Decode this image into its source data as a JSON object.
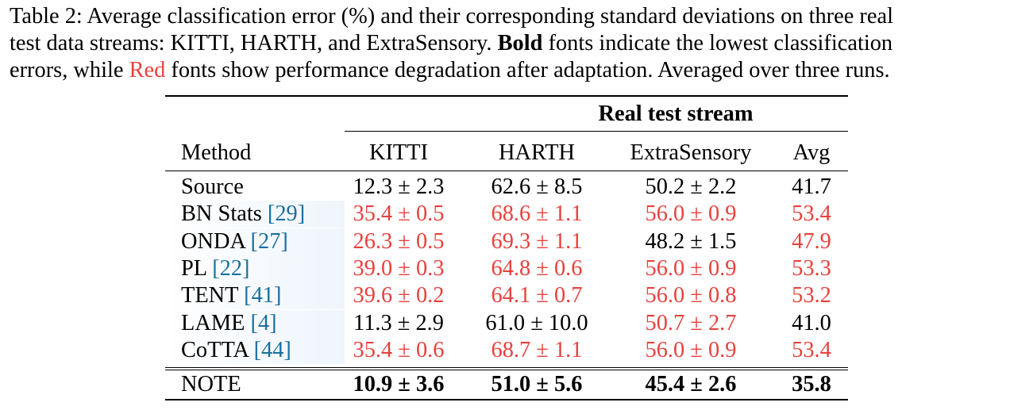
{
  "caption": {
    "part1": "Table 2: Average classification error (%) and their corresponding standard deviations on three real",
    "part2a": "test data streams: KITTI, HARTH, and ExtraSensory. ",
    "part2b": "Bold",
    "part2c": " fonts indicate the lowest classification",
    "part3a": "errors, while ",
    "part3b": "Red",
    "part3c": " fonts show performance degradation after adaptation. Averaged over three runs."
  },
  "table": {
    "group_header": "Real test stream",
    "columns": [
      "Method",
      "KITTI",
      "HARTH",
      "ExtraSensory",
      "Avg"
    ],
    "rows": [
      {
        "method": "Source",
        "cite": "",
        "cells": [
          {
            "v": "12.3 ± 2.3",
            "red": false
          },
          {
            "v": "62.6 ± 8.5",
            "red": false
          },
          {
            "v": "50.2 ± 2.2",
            "red": false
          },
          {
            "v": "41.7",
            "red": false
          }
        ]
      },
      {
        "method": "BN Stats ",
        "cite": "[29]",
        "cells": [
          {
            "v": "35.4 ± 0.5",
            "red": true
          },
          {
            "v": "68.6 ± 1.1",
            "red": true
          },
          {
            "v": "56.0 ± 0.9",
            "red": true
          },
          {
            "v": "53.4",
            "red": true
          }
        ]
      },
      {
        "method": "ONDA ",
        "cite": "[27]",
        "cells": [
          {
            "v": "26.3 ± 0.5",
            "red": true
          },
          {
            "v": "69.3 ± 1.1",
            "red": true
          },
          {
            "v": "48.2 ± 1.5",
            "red": false
          },
          {
            "v": "47.9",
            "red": true
          }
        ]
      },
      {
        "method": "PL ",
        "cite": "[22]",
        "cells": [
          {
            "v": "39.0 ± 0.3",
            "red": true
          },
          {
            "v": "64.8 ± 0.6",
            "red": true
          },
          {
            "v": "56.0 ± 0.9",
            "red": true
          },
          {
            "v": "53.3",
            "red": true
          }
        ]
      },
      {
        "method": "TENT ",
        "cite": "[41]",
        "cells": [
          {
            "v": "39.6 ± 0.2",
            "red": true
          },
          {
            "v": "64.1 ± 0.7",
            "red": true
          },
          {
            "v": "56.0 ± 0.8",
            "red": true
          },
          {
            "v": "53.2",
            "red": true
          }
        ]
      },
      {
        "method": "LAME ",
        "cite": "[4]",
        "cells": [
          {
            "v": "11.3 ± 2.9",
            "red": false
          },
          {
            "v": "61.0 ± 10.0",
            "red": false
          },
          {
            "v": "50.7 ± 2.7",
            "red": true
          },
          {
            "v": "41.0",
            "red": false
          }
        ]
      },
      {
        "method": "CoTTA ",
        "cite": "[44]",
        "cells": [
          {
            "v": "35.4 ± 0.6",
            "red": true
          },
          {
            "v": "68.7 ± 1.1",
            "red": true
          },
          {
            "v": "56.0 ± 0.9",
            "red": true
          },
          {
            "v": "53.4",
            "red": true
          }
        ]
      }
    ],
    "final_row": {
      "method": "NOTE",
      "cells": [
        "10.9 ± 3.6",
        "51.0 ± 5.6",
        "45.4 ± 2.6",
        "35.8"
      ]
    }
  },
  "colors": {
    "red": "#e8413c",
    "cite": "#1a6fa0"
  }
}
